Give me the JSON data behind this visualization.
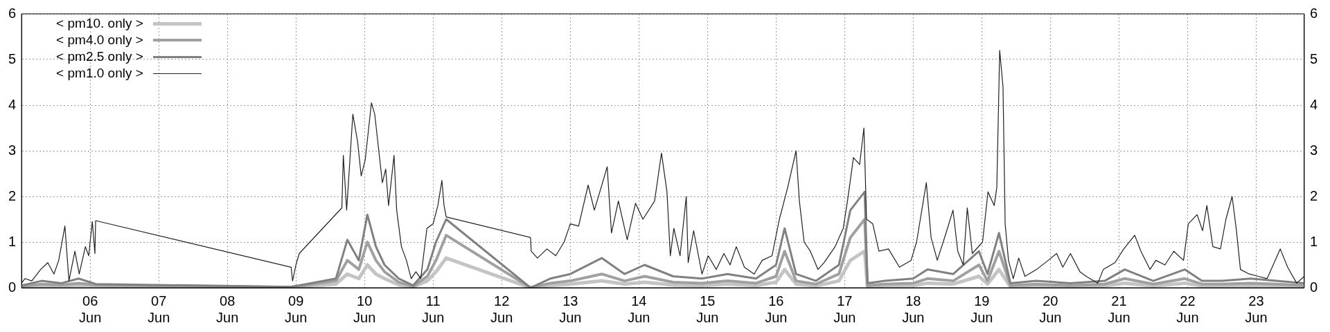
{
  "chart_data": {
    "type": "line",
    "xlim": [
      "--06-05T00:00",
      "--06-23T16:50"
    ],
    "xticks": [
      {
        "value": "--06-06",
        "label": "06 Jun"
      },
      {
        "value": "--06-07",
        "label": "07 Jun"
      },
      {
        "value": "--06-08",
        "label": "08 Jun"
      },
      {
        "value": "--06-09",
        "label": "09 Jun"
      },
      {
        "value": "--06-10",
        "label": "10 Jun"
      },
      {
        "value": "--06-11",
        "label": "11 Jun"
      },
      {
        "value": "--06-12",
        "label": "12 Jun"
      },
      {
        "value": "--06-13",
        "label": "13 Jun"
      },
      {
        "value": "--06-14",
        "label": "14 Jun"
      },
      {
        "value": "--06-15",
        "label": "15 Jun"
      },
      {
        "value": "--06-16",
        "label": "16 Jun"
      },
      {
        "value": "--06-17",
        "label": "17 Jun"
      },
      {
        "value": "--06-18",
        "label": "18 Jun"
      },
      {
        "value": "--06-19",
        "label": "19 Jun"
      },
      {
        "value": "--06-20",
        "label": "20 Jun"
      },
      {
        "value": "--06-21",
        "label": "21 Jun"
      },
      {
        "value": "--06-22",
        "label": "22 Jun"
      },
      {
        "value": "--06-23",
        "label": "23 Jun"
      }
    ],
    "ylim": [
      0,
      6
    ],
    "yticks": [
      0,
      1,
      2,
      3,
      4,
      5,
      6
    ],
    "y2lim": [
      0,
      6
    ],
    "y2ticks": [
      0,
      1,
      2,
      3,
      4,
      5,
      6
    ],
    "grid": true,
    "legend": "top left",
    "marker": "none",
    "line_style": "solid",
    "series": [
      {
        "name": "< pm10. only >",
        "color": "#c4c4c4",
        "x": [
          "--06-05T00:00",
          "--06-05T07:00",
          "--06-05T14:00",
          "--06-05T20:00",
          "--06-06T02:00",
          "--06-08T22:00",
          "--06-09T01:00",
          "--06-09T14:00",
          "--06-09T18:00",
          "--06-09T22:00",
          "--06-10T01:00",
          "--06-10T04:00",
          "--06-10T07:00",
          "--06-10T12:00",
          "--06-10T17:00",
          "--06-10T22:00",
          "--06-11T01:00",
          "--06-11T04:35",
          "--06-12T10:05",
          "--06-12T17:00",
          "--06-13T00:00",
          "--06-13T11:00",
          "--06-13T19:00",
          "--06-14T02:00",
          "--06-14T12:00",
          "--06-14T22:00",
          "--06-15T07:00",
          "--06-15T17:00",
          "--06-16T00:00",
          "--06-16T03:00",
          "--06-16T07:00",
          "--06-16T14:00",
          "--06-16T22:00",
          "--06-17T02:00",
          "--06-17T07:00",
          "--06-17T08:00",
          "--06-17T14:00",
          "--06-18T00:00",
          "--06-18T05:00",
          "--06-18T14:00",
          "--06-18T23:00",
          "--06-19T02:00",
          "--06-19T06:00",
          "--06-19T10:00",
          "--06-19T19:00",
          "--06-20T07:00",
          "--06-20T19:00",
          "--06-21T02:00",
          "--06-21T12:00",
          "--06-21T23:00",
          "--06-22T05:00",
          "--06-22T12:00",
          "--06-22T22:00",
          "--06-23T07:00",
          "--06-23T16:50"
        ],
        "values": [
          0.02,
          0.04,
          0.03,
          0.05,
          0.04,
          0.0,
          0.02,
          0.08,
          0.3,
          0.2,
          0.5,
          0.3,
          0.2,
          0.06,
          0.02,
          0.15,
          0.35,
          0.65,
          0.0,
          0.05,
          0.08,
          0.15,
          0.08,
          0.12,
          0.06,
          0.05,
          0.08,
          0.05,
          0.12,
          0.4,
          0.08,
          0.04,
          0.15,
          0.6,
          0.8,
          0.02,
          0.04,
          0.05,
          0.1,
          0.08,
          0.25,
          0.08,
          0.4,
          0.02,
          0.04,
          0.02,
          0.04,
          0.1,
          0.04,
          0.1,
          0.04,
          0.04,
          0.05,
          0.04,
          0.02
        ]
      },
      {
        "name": "< pm4.0 only >",
        "color": "#a0a0a0",
        "x": [
          "--06-05T00:00",
          "--06-05T07:00",
          "--06-05T14:00",
          "--06-05T20:00",
          "--06-06T02:00",
          "--06-08T22:00",
          "--06-09T01:00",
          "--06-09T14:00",
          "--06-09T18:00",
          "--06-09T22:00",
          "--06-10T01:00",
          "--06-10T04:00",
          "--06-10T07:00",
          "--06-10T12:00",
          "--06-10T17:00",
          "--06-10T22:00",
          "--06-11T01:00",
          "--06-11T04:35",
          "--06-12T10:05",
          "--06-12T17:00",
          "--06-13T00:00",
          "--06-13T11:00",
          "--06-13T19:00",
          "--06-14T02:00",
          "--06-14T12:00",
          "--06-14T22:00",
          "--06-15T07:00",
          "--06-15T17:00",
          "--06-16T00:00",
          "--06-16T03:00",
          "--06-16T07:00",
          "--06-16T14:00",
          "--06-16T22:00",
          "--06-17T02:00",
          "--06-17T07:00",
          "--06-17T08:00",
          "--06-17T14:00",
          "--06-18T00:00",
          "--06-18T05:00",
          "--06-18T14:00",
          "--06-18T23:00",
          "--06-19T02:00",
          "--06-19T06:00",
          "--06-19T10:00",
          "--06-19T19:00",
          "--06-20T07:00",
          "--06-20T19:00",
          "--06-21T02:00",
          "--06-21T12:00",
          "--06-21T23:00",
          "--06-22T05:00",
          "--06-22T12:00",
          "--06-22T22:00",
          "--06-23T07:00",
          "--06-23T16:50"
        ],
        "values": [
          0.03,
          0.08,
          0.06,
          0.1,
          0.06,
          0.01,
          0.03,
          0.15,
          0.6,
          0.4,
          1.0,
          0.6,
          0.35,
          0.12,
          0.03,
          0.25,
          0.6,
          1.15,
          0.0,
          0.1,
          0.15,
          0.3,
          0.15,
          0.25,
          0.12,
          0.1,
          0.15,
          0.1,
          0.25,
          0.8,
          0.15,
          0.08,
          0.3,
          1.1,
          1.5,
          0.05,
          0.08,
          0.1,
          0.2,
          0.15,
          0.5,
          0.15,
          0.8,
          0.05,
          0.08,
          0.05,
          0.08,
          0.2,
          0.08,
          0.2,
          0.08,
          0.08,
          0.1,
          0.08,
          0.05
        ]
      },
      {
        "name": "< pm2.5 only >",
        "color": "#808080",
        "x": [
          "--06-05T00:00",
          "--06-05T07:00",
          "--06-05T14:00",
          "--06-05T20:00",
          "--06-06T02:00",
          "--06-08T22:00",
          "--06-09T01:00",
          "--06-09T14:00",
          "--06-09T18:00",
          "--06-09T22:00",
          "--06-10T01:00",
          "--06-10T04:00",
          "--06-10T07:00",
          "--06-10T12:00",
          "--06-10T17:00",
          "--06-10T22:00",
          "--06-11T01:00",
          "--06-11T04:35",
          "--06-12T10:05",
          "--06-12T17:00",
          "--06-13T00:00",
          "--06-13T11:00",
          "--06-13T19:00",
          "--06-14T02:00",
          "--06-14T12:00",
          "--06-14T22:00",
          "--06-15T07:00",
          "--06-15T17:00",
          "--06-16T00:00",
          "--06-16T03:00",
          "--06-16T07:00",
          "--06-16T14:00",
          "--06-16T22:00",
          "--06-17T02:00",
          "--06-17T07:00",
          "--06-17T08:00",
          "--06-17T14:00",
          "--06-18T00:00",
          "--06-18T05:00",
          "--06-18T14:00",
          "--06-18T23:00",
          "--06-19T02:00",
          "--06-19T06:00",
          "--06-19T10:00",
          "--06-19T19:00",
          "--06-20T07:00",
          "--06-20T19:00",
          "--06-21T02:00",
          "--06-21T12:00",
          "--06-21T23:00",
          "--06-22T05:00",
          "--06-22T12:00",
          "--06-22T22:00",
          "--06-23T07:00",
          "--06-23T16:50"
        ],
        "values": [
          0.05,
          0.15,
          0.1,
          0.2,
          0.08,
          0.02,
          0.05,
          0.2,
          1.05,
          0.6,
          1.6,
          0.9,
          0.5,
          0.2,
          0.05,
          0.4,
          1.0,
          1.5,
          0.0,
          0.2,
          0.3,
          0.65,
          0.3,
          0.5,
          0.25,
          0.2,
          0.3,
          0.2,
          0.5,
          1.3,
          0.3,
          0.15,
          0.5,
          1.7,
          2.1,
          0.1,
          0.15,
          0.2,
          0.4,
          0.3,
          0.8,
          0.3,
          1.2,
          0.1,
          0.15,
          0.1,
          0.15,
          0.4,
          0.15,
          0.4,
          0.15,
          0.15,
          0.2,
          0.15,
          0.1
        ]
      },
      {
        "name": "< pm1.0 only >",
        "color": "#202020",
        "x": [
          "--06-05T00:00",
          "--06-05T01:10",
          "--06-05T03:35",
          "--06-05T06:40",
          "--06-05T09:10",
          "--06-05T11:20",
          "--06-05T13:00",
          "--06-05T15:10",
          "--06-05T16:35",
          "--06-05T18:40",
          "--06-05T20:10",
          "--06-05T22:20",
          "--06-05T23:30",
          "--06-06T00:45",
          "--06-06T01:40",
          "--06-06T01:55",
          "--06-08T22:20",
          "--06-08T22:50",
          "--06-09T00:00",
          "--06-09T01:10",
          "--06-09T16:05",
          "--06-09T16:35",
          "--06-09T17:45",
          "--06-09T19:55",
          "--06-09T21:35",
          "--06-09T22:50",
          "--06-10T00:15",
          "--06-10T02:25",
          "--06-10T03:35",
          "--06-10T05:00",
          "--06-10T06:15",
          "--06-10T07:25",
          "--06-10T08:25",
          "--06-10T10:20",
          "--06-10T11:15",
          "--06-10T12:55",
          "--06-10T14:40",
          "--06-10T16:20",
          "--06-10T18:00",
          "--06-10T19:40",
          "--06-10T21:50",
          "--06-11T00:00",
          "--06-11T01:40",
          "--06-11T03:05",
          "--06-11T03:50",
          "--06-11T04:35",
          "--06-12T10:05",
          "--06-12T10:20",
          "--06-12T12:30",
          "--06-12T15:50",
          "--06-12T18:55",
          "--06-12T21:50",
          "--06-13T00:00",
          "--06-13T02:55",
          "--06-13T06:15",
          "--06-13T08:25",
          "--06-13T10:35",
          "--06-13T12:55",
          "--06-13T14:25",
          "--06-13T16:50",
          "--06-13T19:55",
          "--06-13T22:50",
          "--06-14T01:25",
          "--06-14T05:30",
          "--06-14T07:55",
          "--06-14T09:50",
          "--06-14T11:00",
          "--06-14T12:15",
          "--06-14T14:25",
          "--06-14T16:35",
          "--06-14T17:15",
          "--06-14T19:10",
          "--06-14T22:05",
          "--06-15T00:15",
          "--06-15T03:05",
          "--06-15T05:45",
          "--06-15T07:55",
          "--06-15T10:05",
          "--06-15T12:55",
          "--06-15T16:20",
          "--06-15T19:10",
          "--06-15T22:35",
          "--06-16T01:10",
          "--06-16T04:05",
          "--06-16T07:00",
          "--06-16T08:10",
          "--06-16T09:50",
          "--06-16T12:00",
          "--06-16T14:40",
          "--06-16T16:50",
          "--06-16T20:40",
          "--06-16T23:30",
          "--06-17T01:00",
          "--06-17T03:05",
          "--06-17T05:15",
          "--06-17T06:45",
          "--06-17T07:40",
          "--06-17T09:50",
          "--06-17T12:00",
          "--06-17T15:20",
          "--06-17T19:10",
          "--06-17T23:15",
          "--06-18T01:10",
          "--06-18T04:35",
          "--06-18T06:15",
          "--06-18T08:25",
          "--06-18T11:30",
          "--06-18T13:55",
          "--06-18T15:35",
          "--06-18T17:30",
          "--06-18T18:55",
          "--06-18T20:40",
          "--06-19T00:15",
          "--06-19T02:10",
          "--06-19T04:20",
          "--06-19T05:15",
          "--06-19T06:15",
          "--06-19T07:25",
          "--06-19T08:10",
          "--06-19T09:20",
          "--06-19T11:00",
          "--06-19T12:55",
          "--06-19T15:05",
          "--06-19T19:10",
          "--06-19T23:15",
          "--06-20T02:10",
          "--06-20T04:20",
          "--06-20T07:00",
          "--06-20T10:20",
          "--06-20T12:30",
          "--06-20T16:35",
          "--06-20T18:30",
          "--06-20T22:35",
          "--06-21T01:40",
          "--06-21T05:30",
          "--06-21T07:40",
          "--06-21T10:50",
          "--06-21T12:55",
          "--06-21T16:05",
          "--06-21T19:10",
          "--06-21T22:35",
          "--06-22T00:15",
          "--06-22T03:20",
          "--06-22T05:15",
          "--06-22T06:45",
          "--06-22T08:50",
          "--06-22T11:30",
          "--06-22T13:25",
          "--06-22T15:35",
          "--06-22T17:00",
          "--06-22T18:30",
          "--06-22T21:35",
          "--06-23T00:45",
          "--06-23T03:50",
          "--06-23T08:25",
          "--06-23T11:00",
          "--06-23T14:10",
          "--06-23T16:50"
        ],
        "values": [
          0.1,
          0.2,
          0.15,
          0.4,
          0.55,
          0.3,
          0.6,
          1.35,
          0.15,
          0.8,
          0.3,
          0.9,
          0.7,
          1.45,
          0.75,
          1.47,
          0.45,
          0.15,
          0.5,
          0.75,
          1.75,
          2.9,
          1.7,
          3.8,
          3.2,
          2.45,
          2.8,
          4.05,
          3.8,
          3.0,
          2.3,
          2.6,
          1.8,
          2.9,
          1.7,
          0.9,
          0.6,
          0.2,
          0.35,
          0.2,
          1.3,
          1.4,
          1.8,
          2.35,
          1.8,
          1.55,
          1.1,
          0.8,
          0.65,
          0.85,
          0.7,
          1.0,
          1.4,
          1.35,
          2.25,
          1.7,
          2.15,
          2.65,
          1.2,
          1.9,
          1.05,
          1.85,
          1.5,
          1.9,
          2.95,
          2.1,
          0.7,
          1.3,
          0.7,
          2.0,
          0.55,
          1.25,
          0.3,
          0.7,
          0.4,
          0.75,
          0.5,
          0.9,
          0.45,
          0.3,
          0.6,
          0.7,
          1.5,
          2.2,
          3.0,
          1.9,
          1.0,
          0.8,
          0.4,
          0.55,
          0.9,
          1.3,
          1.9,
          2.85,
          2.7,
          3.5,
          1.5,
          1.4,
          0.8,
          0.85,
          0.45,
          0.6,
          1.0,
          2.3,
          1.1,
          0.6,
          1.2,
          1.7,
          0.8,
          0.5,
          1.75,
          0.75,
          1.0,
          2.1,
          1.8,
          2.2,
          5.2,
          4.4,
          1.4,
          0.6,
          0.2,
          0.65,
          0.25,
          0.4,
          0.6,
          0.75,
          0.45,
          0.75,
          0.35,
          0.25,
          0.1,
          0.4,
          0.55,
          0.85,
          1.15,
          0.8,
          0.4,
          0.6,
          0.5,
          0.8,
          0.6,
          1.4,
          1.6,
          1.25,
          1.8,
          0.9,
          0.85,
          1.5,
          2.0,
          1.3,
          0.4,
          0.3,
          0.25,
          0.2,
          0.85,
          0.45,
          0.1,
          0.25
        ]
      }
    ]
  }
}
